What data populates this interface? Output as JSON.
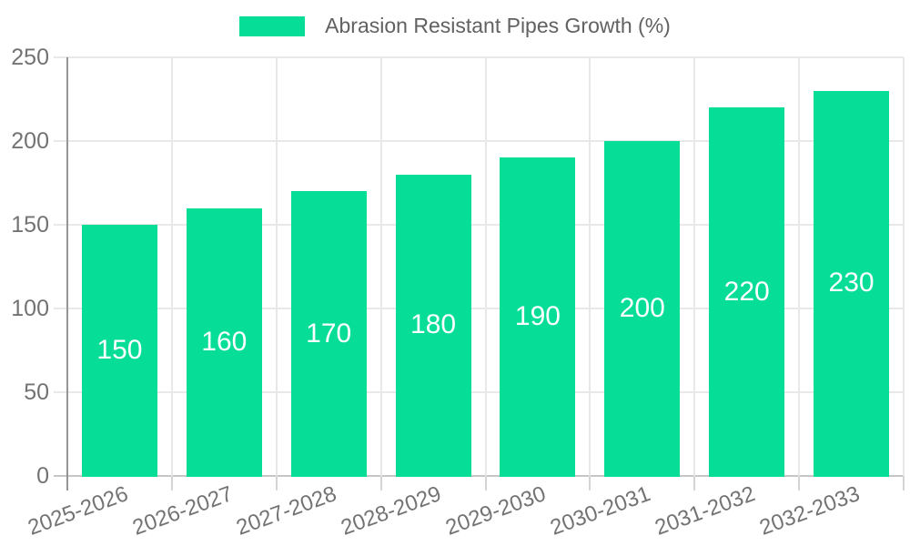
{
  "chart_data": {
    "type": "bar",
    "title": "Abrasion Resistant Pipes Growth (%)",
    "categories": [
      "2025-2026",
      "2026-2027",
      "2027-2028",
      "2028-2029",
      "2029-2030",
      "2030-2031",
      "2031-2032",
      "2032-2033"
    ],
    "values": [
      150,
      160,
      170,
      180,
      190,
      200,
      220,
      230
    ],
    "series": [
      {
        "name": "Abrasion Resistant Pipes Growth (%)",
        "values": [
          150,
          160,
          170,
          180,
          190,
          200,
          220,
          230
        ]
      }
    ],
    "xlabel": "",
    "ylabel": "",
    "ylim": [
      0,
      250
    ],
    "yticks": [
      0,
      50,
      100,
      150,
      200,
      250
    ],
    "grid": true,
    "legend_position": "top",
    "bar_labels_inside": true,
    "colors": {
      "bar": "#06de97",
      "bar_label": "#ffffff",
      "grid_line": "#e8e8e8",
      "baseline": "#c6c6c6",
      "tick": "#d4d4d4",
      "axis_line": "#949494",
      "axis_text": "#737373",
      "legend_text": "#616161",
      "background": "#ffffff"
    }
  }
}
